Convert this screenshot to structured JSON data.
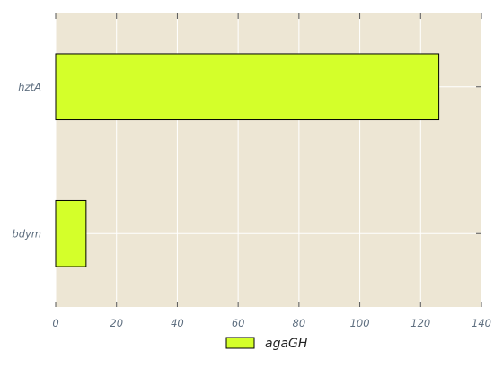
{
  "chart_data": {
    "type": "bar",
    "orientation": "horizontal",
    "categories": [
      "hztA",
      "bdym"
    ],
    "series": [
      {
        "name": "agaGH",
        "values": [
          126,
          10
        ],
        "color": "#d4ff2a"
      }
    ],
    "xlim": [
      0,
      140
    ],
    "x_ticks": [
      "0",
      "20",
      "40",
      "60",
      "80",
      "100",
      "120",
      "140"
    ],
    "grid": true,
    "legend_position": "bottom-center",
    "colors": {
      "plot_background": "#ede6d4",
      "grid": "#ffffff",
      "bar_edge": "#000000",
      "tick_text": "#5f6f80"
    }
  }
}
